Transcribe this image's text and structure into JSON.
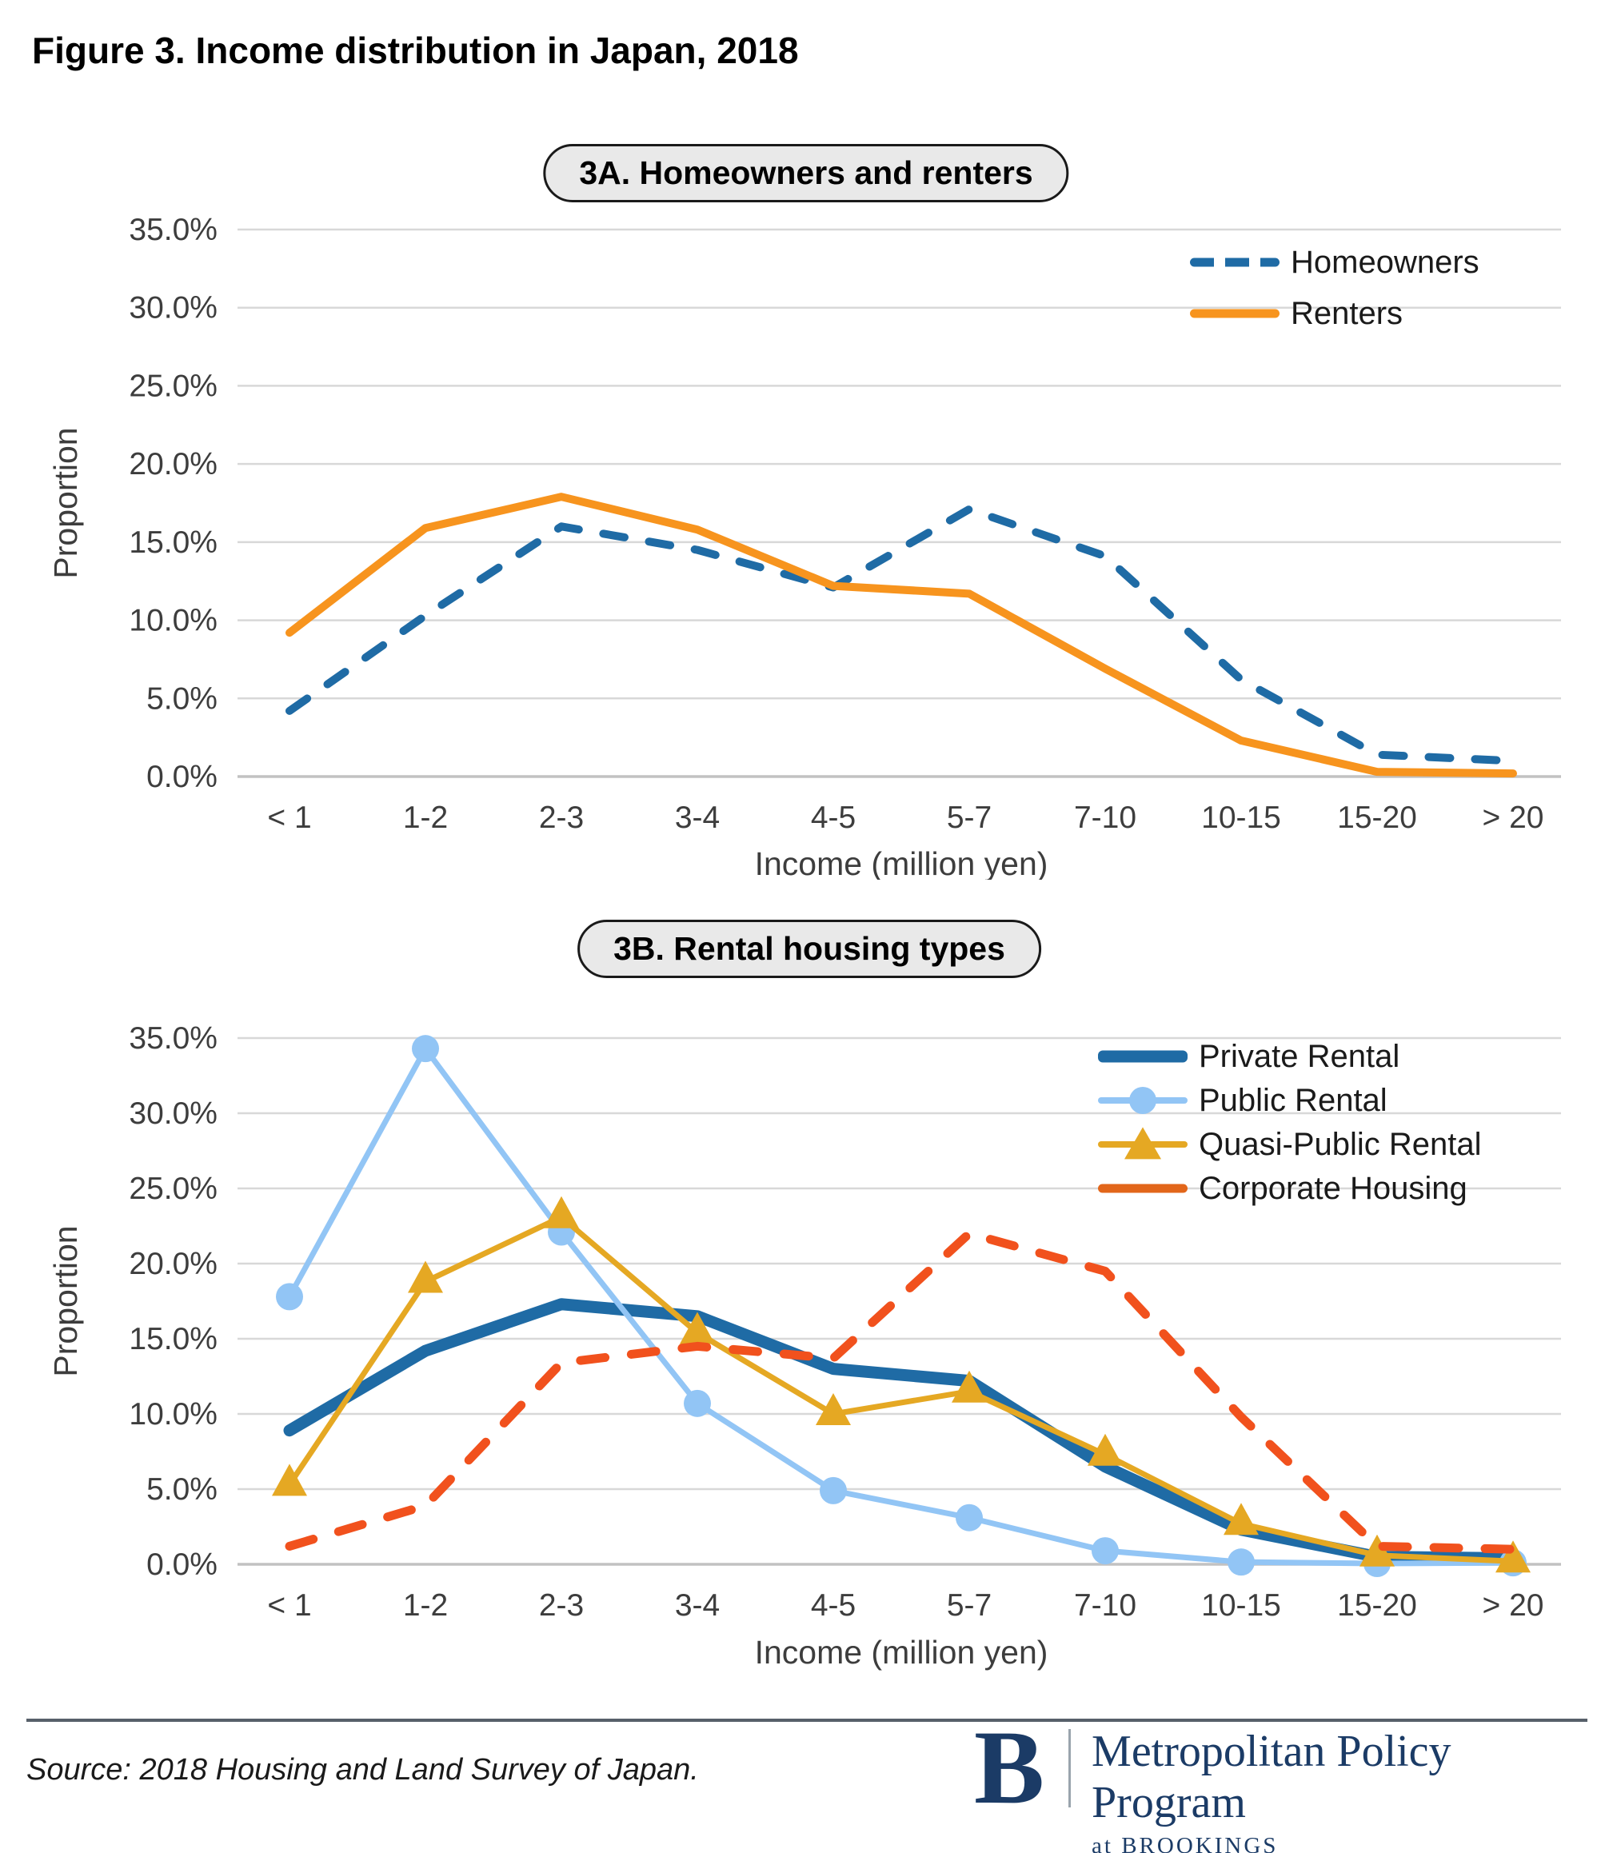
{
  "title": "Figure 3. Income distribution in Japan, 2018",
  "chart_data": [
    {
      "type": "line",
      "title": "3A. Homeowners and renters",
      "categories": [
        "< 1",
        "1-2",
        "2-3",
        "3-4",
        "4-5",
        "5-7",
        "7-10",
        "10-15",
        "15-20",
        "> 20"
      ],
      "xlabel": "Income (million yen)",
      "ylabel": "Proportion",
      "ylim": [
        0,
        35
      ],
      "ytick_step": 5,
      "ytick_labels": [
        "0.0%",
        "5.0%",
        "10.0%",
        "15.0%",
        "20.0%",
        "25.0%",
        "30.0%",
        "35.0%"
      ],
      "grid": true,
      "legend_position": "top-right-inside",
      "series": [
        {
          "name": "Homeowners",
          "color": "#1F6BA5",
          "style": "dashed",
          "values": [
            4.2,
            10.3,
            16.0,
            14.5,
            12.1,
            17.1,
            14.1,
            6.2,
            1.4,
            1.0
          ]
        },
        {
          "name": "Renters",
          "color": "#F7941E",
          "style": "solid",
          "values": [
            9.2,
            15.9,
            17.9,
            15.8,
            12.2,
            11.7,
            6.9,
            2.3,
            0.3,
            0.2
          ]
        }
      ]
    },
    {
      "type": "line",
      "title": "3B. Rental housing types",
      "categories": [
        "< 1",
        "1-2",
        "2-3",
        "3-4",
        "4-5",
        "5-7",
        "7-10",
        "10-15",
        "15-20",
        "> 20"
      ],
      "xlabel": "Income (million yen)",
      "ylabel": "Proportion",
      "ylim": [
        0,
        35
      ],
      "ytick_step": 5,
      "ytick_labels": [
        "0.0%",
        "5.0%",
        "10.0%",
        "15.0%",
        "20.0%",
        "25.0%",
        "30.0%",
        "35.0%"
      ],
      "grid": true,
      "legend_position": "top-right-inside",
      "series": [
        {
          "name": "Private Rental",
          "color": "#1F6BA5",
          "style": "solid",
          "thick": true,
          "values": [
            8.9,
            14.2,
            17.3,
            16.5,
            13.0,
            12.2,
            6.5,
            2.3,
            0.5,
            0.4
          ]
        },
        {
          "name": "Public Rental",
          "color": "#92C5F5",
          "style": "solid",
          "marker": "circle",
          "values": [
            17.8,
            34.3,
            22.1,
            10.7,
            4.9,
            3.1,
            0.9,
            0.15,
            0.05,
            0.1
          ]
        },
        {
          "name": "Quasi-Public Rental",
          "color": "#E5A823",
          "style": "solid",
          "marker": "triangle",
          "values": [
            5.3,
            18.8,
            23.1,
            15.4,
            10.0,
            11.5,
            7.3,
            2.7,
            0.6,
            0.2
          ]
        },
        {
          "name": "Corporate Housing",
          "color": "#F1511D",
          "legend_color": "#E2661A",
          "style": "dashed",
          "values": [
            1.2,
            3.9,
            13.4,
            14.5,
            13.7,
            22.0,
            19.5,
            9.8,
            1.2,
            1.0
          ]
        }
      ]
    }
  ],
  "footer": {
    "source": "Source: 2018 Housing and Land Survey of Japan.",
    "logo_b": "B",
    "logo_title": "Metropolitan Policy Program",
    "logo_subtitle": "at BROOKINGS"
  },
  "colors": {
    "grid": "#d8d8d8",
    "axis": "#c2c2c2",
    "tick_text": "#3d3d3d",
    "brand_navy": "#1b3b66"
  }
}
